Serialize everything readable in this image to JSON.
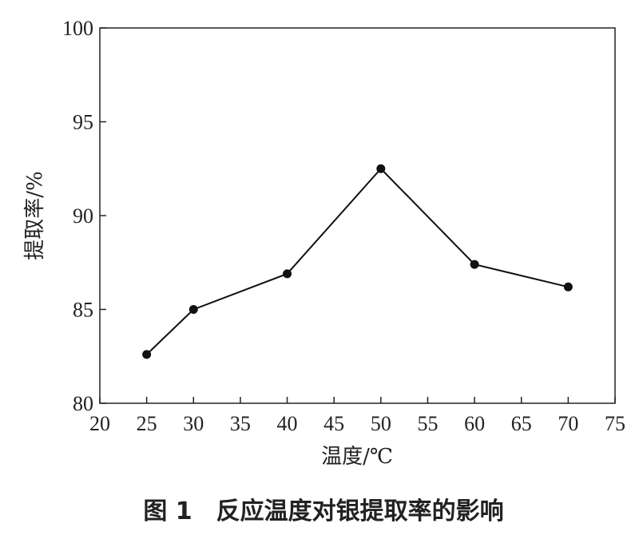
{
  "chart_data": {
    "type": "line",
    "title": "图 1　反应温度对银提取率的影响",
    "x_label": "温度/℃",
    "y_label": "提取率/%",
    "x": [
      25,
      30,
      40,
      50,
      60,
      70
    ],
    "values": [
      82.6,
      85.0,
      86.9,
      92.5,
      87.4,
      86.2
    ],
    "color": "#111111",
    "xlim": [
      20,
      75
    ],
    "xticks": [
      20,
      25,
      30,
      35,
      40,
      45,
      50,
      55,
      60,
      65,
      70,
      75
    ],
    "ylim": [
      80,
      100
    ],
    "yticks": [
      80,
      85,
      90,
      95,
      100
    ]
  }
}
